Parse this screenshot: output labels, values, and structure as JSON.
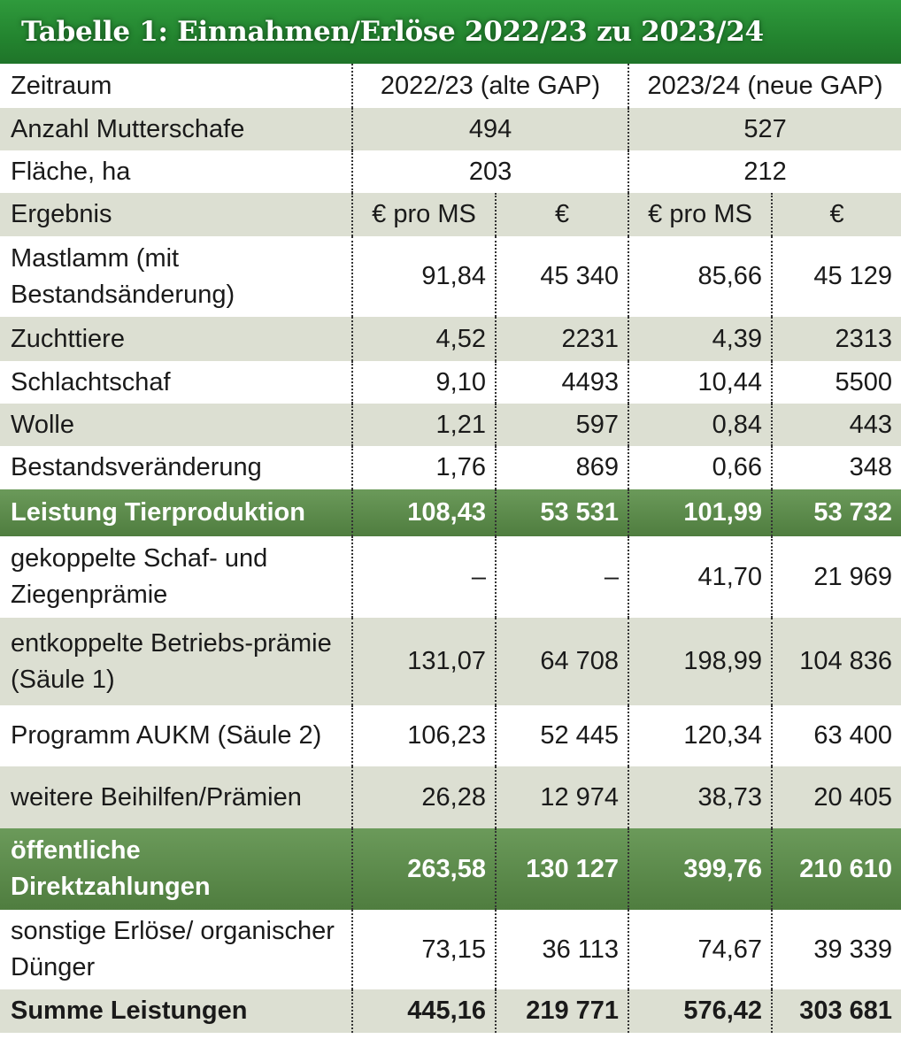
{
  "title": "Tabelle 1: Einnahmen/Erlöse 2022/23 zu 2023/24",
  "header": {
    "label": "Zeitraum",
    "period1": "2022/23 (alte GAP)",
    "period2": "2023/24 (neue GAP)"
  },
  "info_rows": [
    {
      "label": "Anzahl Mutterschafe",
      "v1": "494",
      "v2": "527"
    },
    {
      "label": "Fläche, ha",
      "v1": "203",
      "v2": "212"
    }
  ],
  "unit_row": {
    "label": "Ergebnis",
    "u1": "€ pro MS",
    "u2": "€",
    "u3": "€ pro MS",
    "u4": "€"
  },
  "rows": [
    {
      "label": "Mastlamm (mit Bestandsänderung)",
      "values": [
        "91,84",
        "45 340",
        "85,66",
        "45 129"
      ],
      "style": "white",
      "h": 91
    },
    {
      "label": "Zuchttiere",
      "values": [
        "4,52",
        "2231",
        "4,39",
        "2313"
      ],
      "style": "gray",
      "h": 50
    },
    {
      "label": "Schlachtschaf",
      "values": [
        "9,10",
        "4493",
        "10,44",
        "5500"
      ],
      "style": "white",
      "h": 48
    },
    {
      "label": "Wolle",
      "values": [
        "1,21",
        "597",
        "0,84",
        "443"
      ],
      "style": "gray",
      "h": 48
    },
    {
      "label": "Bestandsveränderung",
      "values": [
        "1,76",
        "869",
        "0,66",
        "348"
      ],
      "style": "white",
      "h": 49
    },
    {
      "label": "Leistung Tierproduktion",
      "values": [
        "108,43",
        "53 531",
        "101,99",
        "53 732"
      ],
      "style": "green",
      "h": 53
    },
    {
      "label": "gekoppelte Schaf- und Ziegenprämie",
      "values": [
        "–",
        "–",
        "41,70",
        "21 969"
      ],
      "style": "white",
      "h": 92
    },
    {
      "label": "entkoppelte Betriebs-prämie (Säule 1)",
      "values": [
        "131,07",
        "64 708",
        "198,99",
        "104 836"
      ],
      "style": "gray",
      "h": 99
    },
    {
      "label": "Programm AUKM (Säule 2)",
      "values": [
        "106,23",
        "52 445",
        "120,34",
        "63 400"
      ],
      "style": "white",
      "h": 69
    },
    {
      "label": "weitere Beihilfen/Prämien",
      "values": [
        "26,28",
        "12 974",
        "38,73",
        "20 405"
      ],
      "style": "gray",
      "h": 70
    },
    {
      "label": "öffentliche Direktzahlungen",
      "values": [
        "263,58",
        "130 127",
        "399,76",
        "210 610"
      ],
      "style": "green",
      "h": 92
    },
    {
      "label": "sonstige Erlöse/ organischer Dünger",
      "values": [
        "73,15",
        "36 113",
        "74,67",
        "39 339"
      ],
      "style": "white",
      "h": 90
    },
    {
      "label": "Summe Leistungen",
      "values": [
        "445,16",
        "219 771",
        "576,42",
        "303 681"
      ],
      "style": "gray bold",
      "h": 49
    }
  ]
}
